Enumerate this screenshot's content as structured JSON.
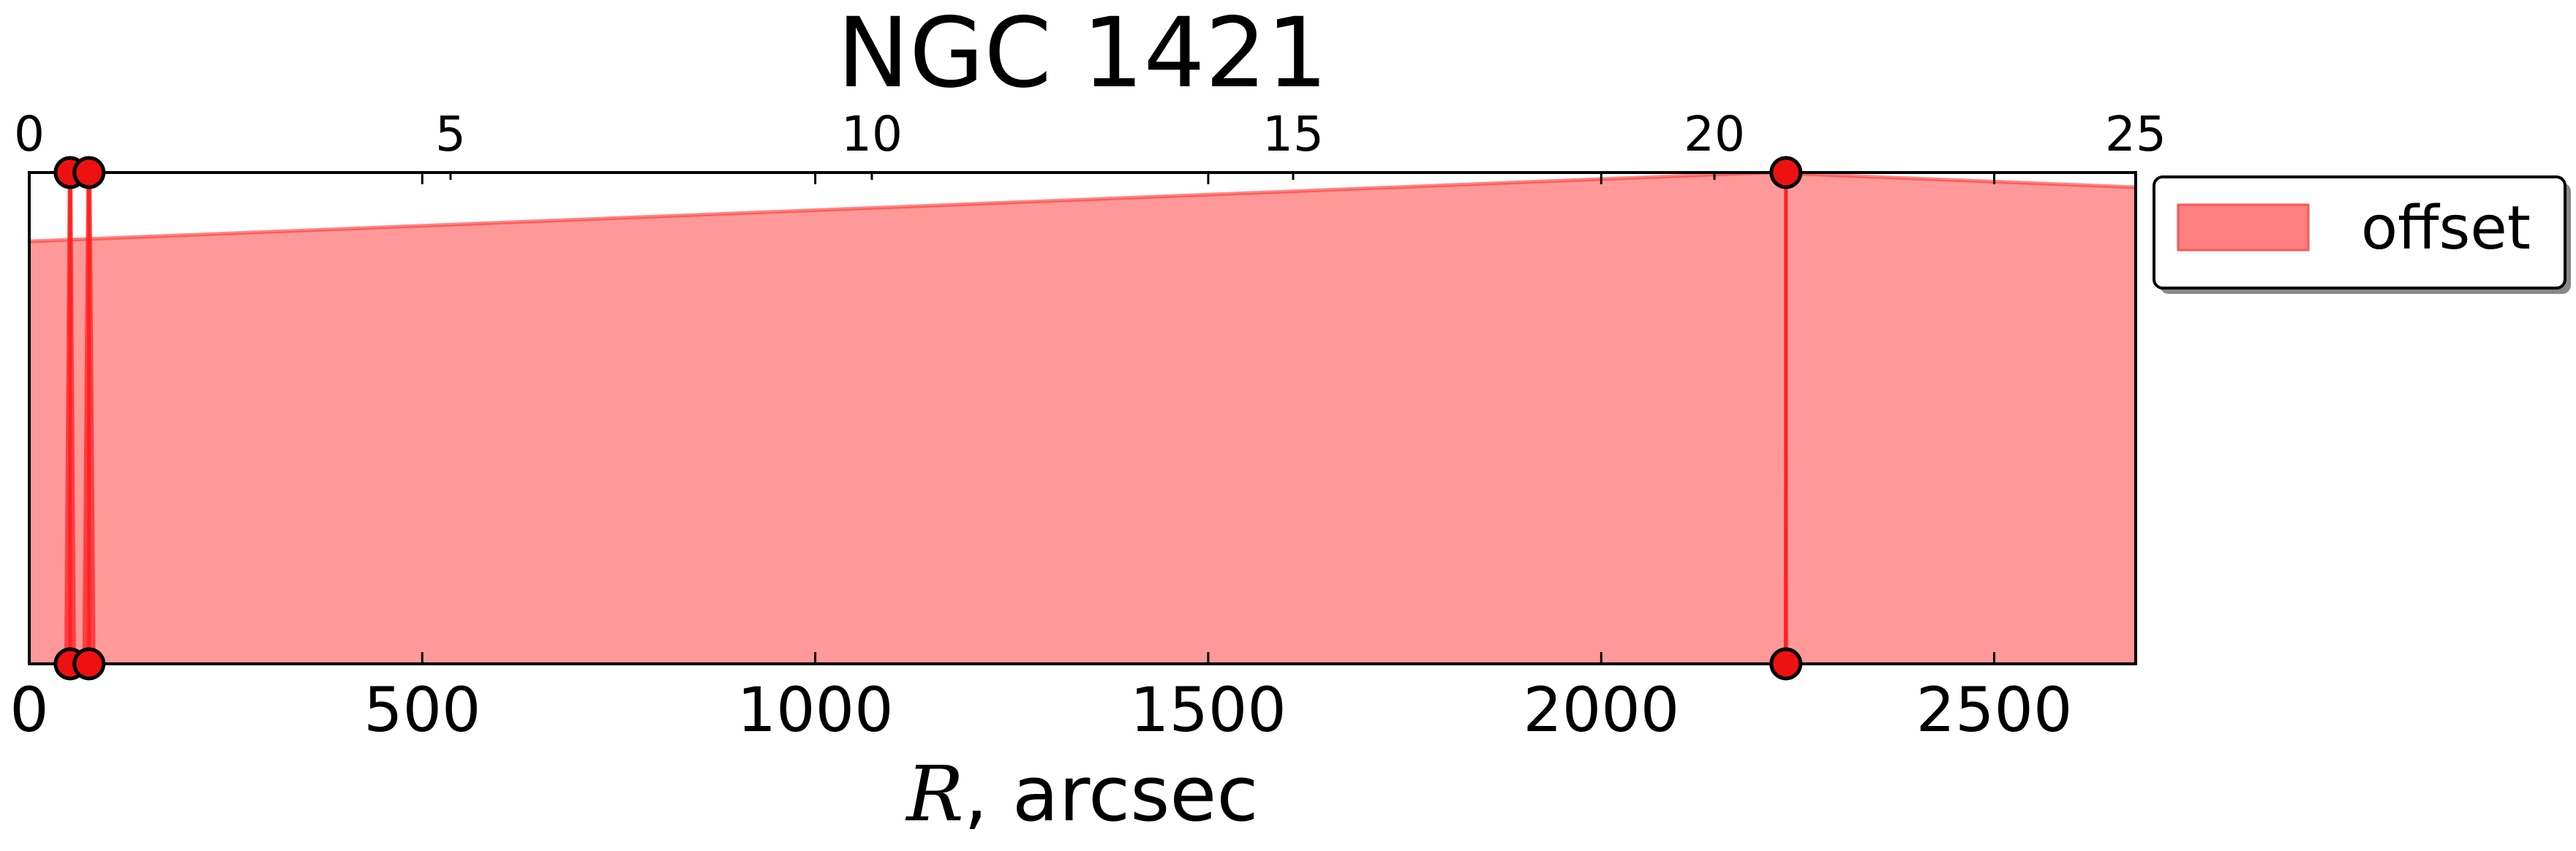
{
  "chart_data": {
    "type": "area",
    "title": "NGC 1421",
    "xlabel_var": "R",
    "xlabel_rest": ", arcsec",
    "ylabel": "",
    "xlim": [
      0,
      2680
    ],
    "ylim": [
      0,
      1
    ],
    "x_ticks": [
      0,
      500,
      1000,
      1500,
      2000,
      2500
    ],
    "x_tick_labels": [
      "0",
      "500",
      "1000",
      "1500",
      "2000",
      "2500"
    ],
    "x2_scale": 107.2,
    "x2_ticks": [
      0,
      5,
      10,
      15,
      20,
      25
    ],
    "x2_tick_labels": [
      "0",
      "5",
      "10",
      "15",
      "20",
      "25"
    ],
    "legend": {
      "position": "outside-right-top",
      "entries": [
        "offset"
      ]
    },
    "grid": false,
    "colors": {
      "fill": "#ff9999",
      "line": "#ff3333",
      "spike": "#ff2222",
      "marker_edge": "#000000",
      "marker_face": "#ee1111",
      "legend_patch": "#ff8080"
    },
    "series": [
      {
        "name": "offset",
        "x": [
          0,
          2210,
          2680
        ],
        "y": [
          0.86,
          1.0,
          0.97
        ]
      }
    ],
    "spikes": [
      {
        "x": 52,
        "y": [
          0,
          1
        ],
        "spread": 8
      },
      {
        "x": 76,
        "y": [
          0,
          1
        ],
        "spread": 9
      },
      {
        "x": 2235,
        "y": [
          0,
          1
        ],
        "spread": 3
      }
    ],
    "markers": [
      {
        "x": 52,
        "y": 1
      },
      {
        "x": 76,
        "y": 1
      },
      {
        "x": 2235,
        "y": 1
      },
      {
        "x": 52,
        "y": 0
      },
      {
        "x": 76,
        "y": 0
      },
      {
        "x": 2235,
        "y": 0
      }
    ]
  }
}
